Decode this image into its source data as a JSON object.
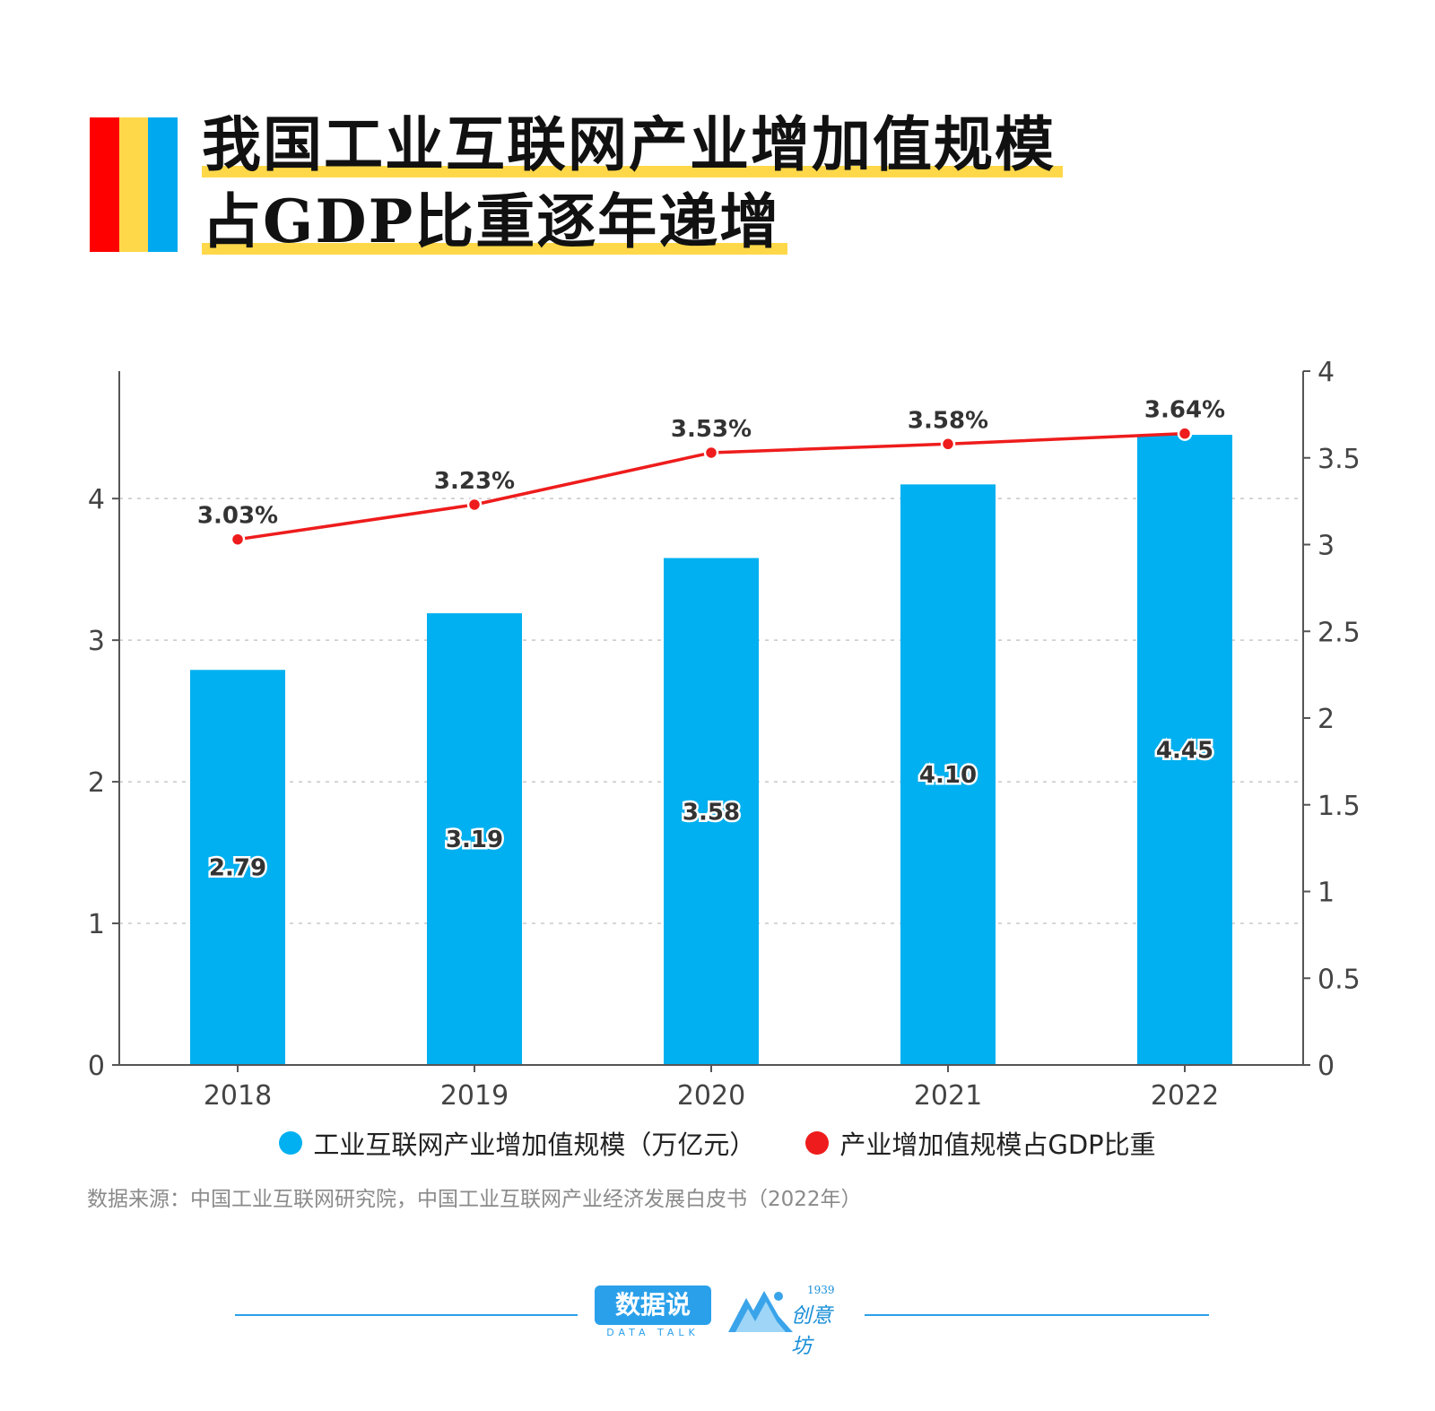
{
  "title": {
    "line1": "我国工业互联网产业增加值规模",
    "line2": "占GDP比重逐年递增"
  },
  "colors": {
    "stripe_red": "#ff0000",
    "stripe_yellow": "#ffd84a",
    "stripe_blue": "#00a9ef",
    "highlight": "#ffd84a",
    "bar": "#00b0f0",
    "line": "#ee1c1c",
    "footer_rule": "#2aa0ea"
  },
  "legend": [
    {
      "label": "工业互联网产业增加值规模（万亿元）",
      "color": "#00b0f0"
    },
    {
      "label": "产业增加值规模占GDP比重",
      "color": "#ee1c1c"
    }
  ],
  "source": "数据来源：中国工业互联网研究院，中国工业互联网产业经济发展白皮书（2022年）",
  "footer": {
    "brand1": "数据说",
    "brand1_sub": "DATA TALK",
    "brand2_num": "1939",
    "brand2_name": "创意坊",
    "brand2_icon": "mountain-logo-icon"
  },
  "chart_data": {
    "type": "bar",
    "categories": [
      "2018",
      "2019",
      "2020",
      "2021",
      "2022"
    ],
    "series": [
      {
        "type": "bar",
        "name": "工业互联网产业增加值规模（万亿元）",
        "axis": "left",
        "values": [
          2.79,
          3.19,
          3.58,
          4.1,
          4.45
        ],
        "labels": [
          "2.79",
          "3.19",
          "3.58",
          "4.10",
          "4.45"
        ]
      },
      {
        "type": "line",
        "name": "产业增加值规模占GDP比重",
        "axis": "right",
        "values": [
          3.03,
          3.23,
          3.53,
          3.58,
          3.64
        ],
        "labels": [
          "3.03%",
          "3.23%",
          "3.53%",
          "3.58%",
          "3.64%"
        ]
      }
    ],
    "left_axis": {
      "ylim": [
        0,
        4.9
      ],
      "ticks": [
        "0",
        "1",
        "2",
        "3",
        "4"
      ]
    },
    "right_axis": {
      "ylim": [
        0,
        4
      ],
      "ticks": [
        "0",
        "0.5",
        "1",
        "1.5",
        "2",
        "2.5",
        "3",
        "3.5",
        "4"
      ]
    },
    "grid": "dashed horizontal"
  }
}
